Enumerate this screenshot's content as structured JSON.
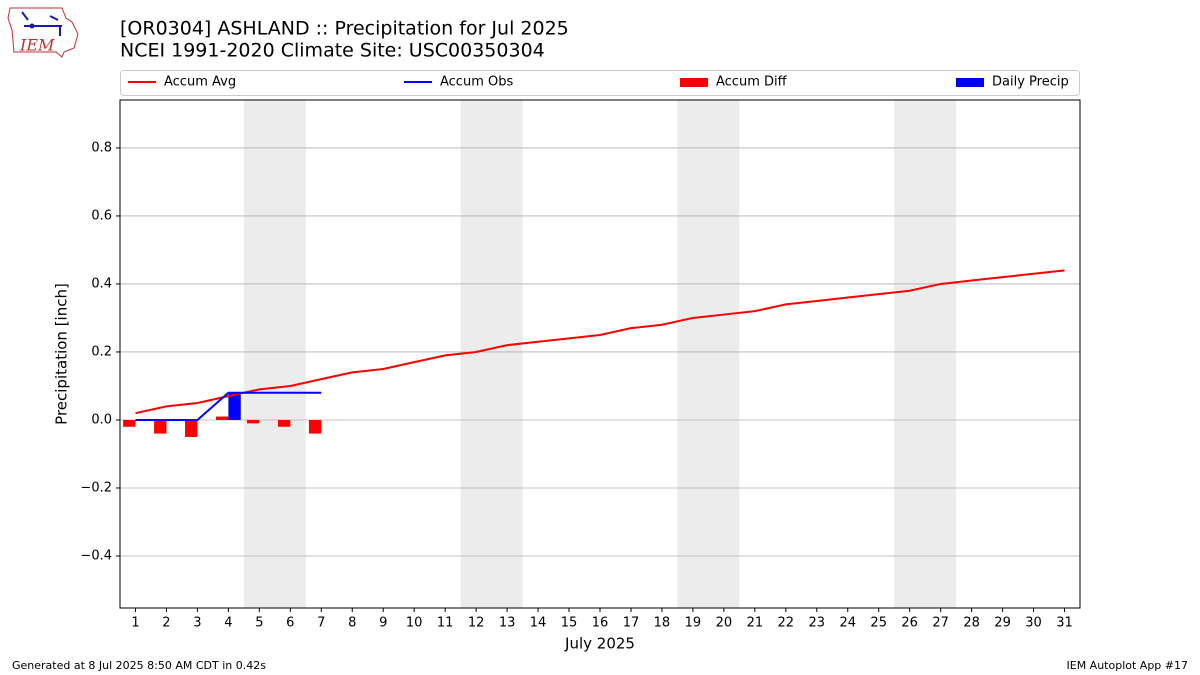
{
  "chart_data": {
    "type": "line",
    "title": "[OR0304] ASHLAND :: Precipitation for Jul 2025",
    "subtitle": "NCEI 1991-2020 Climate Site: USC00350304",
    "logo_text": "IEM",
    "xlabel": "July 2025",
    "ylabel": "Precipitation [inch]",
    "footer_left": "Generated at 8 Jul 2025 8:50 AM CDT in 0.42s",
    "footer_right": "IEM Autoplot App #17",
    "x": [
      1,
      2,
      3,
      4,
      5,
      6,
      7,
      8,
      9,
      10,
      11,
      12,
      13,
      14,
      15,
      16,
      17,
      18,
      19,
      20,
      21,
      22,
      23,
      24,
      25,
      26,
      27,
      28,
      29,
      30,
      31
    ],
    "xlim": [
      0.5,
      31.5
    ],
    "xticks": [
      1,
      2,
      3,
      4,
      5,
      6,
      7,
      8,
      9,
      10,
      11,
      12,
      13,
      14,
      15,
      16,
      17,
      18,
      19,
      20,
      21,
      22,
      23,
      24,
      25,
      26,
      27,
      28,
      29,
      30,
      31
    ],
    "ylim": [
      -0.553,
      0.941
    ],
    "yticks": [
      {
        "value": -0.4,
        "label": "−0.4"
      },
      {
        "value": -0.2,
        "label": "−0.2"
      },
      {
        "value": 0,
        "label": "0.0"
      },
      0.2,
      0.4,
      0.6,
      0.8
    ],
    "grid": true,
    "shaded_spans": [
      [
        4.5,
        6.5
      ],
      [
        11.5,
        13.5
      ],
      [
        18.5,
        20.5
      ],
      [
        25.5,
        27.5
      ]
    ],
    "shade_color": "#ececec",
    "legend": "top",
    "series": [
      {
        "name": "Accum Avg",
        "type": "line",
        "color": "#ff0000",
        "values": [
          0.02,
          0.04,
          0.05,
          0.07,
          0.09,
          0.1,
          0.12,
          0.14,
          0.15,
          0.17,
          0.19,
          0.2,
          0.22,
          0.23,
          0.24,
          0.25,
          0.27,
          0.28,
          0.3,
          0.31,
          0.32,
          0.34,
          0.35,
          0.36,
          0.37,
          0.38,
          0.4,
          0.41,
          0.42,
          0.43,
          0.44
        ]
      },
      {
        "name": "Accum Obs",
        "type": "line",
        "color": "#0000ff",
        "values": [
          0,
          0,
          0,
          0.08,
          0.08,
          0.08,
          0.08,
          null,
          null,
          null,
          null,
          null,
          null,
          null,
          null,
          null,
          null,
          null,
          null,
          null,
          null,
          null,
          null,
          null,
          null,
          null,
          null,
          null,
          null,
          null,
          null
        ]
      },
      {
        "name": "Accum Diff",
        "type": "bar",
        "color": "#ff0000",
        "values": [
          -0.02,
          -0.04,
          -0.05,
          0.01,
          -0.01,
          -0.02,
          -0.04,
          null,
          null,
          null,
          null,
          null,
          null,
          null,
          null,
          null,
          null,
          null,
          null,
          null,
          null,
          null,
          null,
          null,
          null,
          null,
          null,
          null,
          null,
          null,
          null
        ]
      },
      {
        "name": "Daily Precip",
        "type": "bar",
        "color": "#0000ff",
        "values": [
          0,
          0,
          0,
          0.08,
          0,
          0,
          0,
          null,
          null,
          null,
          null,
          null,
          null,
          null,
          null,
          null,
          null,
          null,
          null,
          null,
          null,
          null,
          null,
          null,
          null,
          null,
          null,
          null,
          null,
          null,
          null
        ]
      }
    ]
  }
}
